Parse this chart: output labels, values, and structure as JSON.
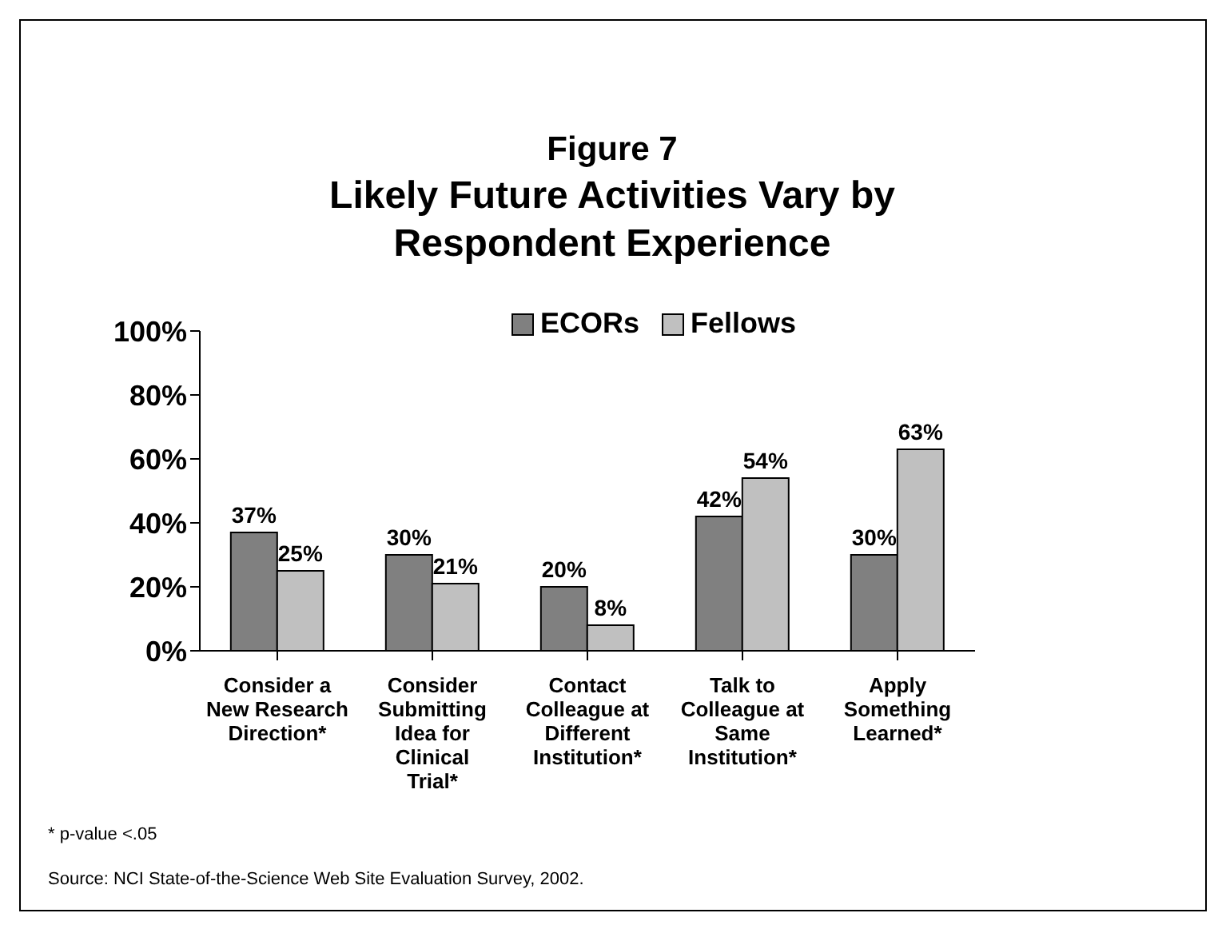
{
  "chart_data": {
    "type": "bar",
    "title": "Figure 7",
    "subtitle": "Likely Future Activities Vary by Respondent Experience",
    "categories": [
      "Consider a New Research Direction*",
      "Consider Submitting Idea for Clinical Trial*",
      "Contact Colleague at Different Institution*",
      "Talk to Colleague at Same Institution*",
      "Apply Something Learned*"
    ],
    "series": [
      {
        "name": "ECORs",
        "color": "#808080",
        "values": [
          37,
          30,
          20,
          42,
          30
        ],
        "value_labels": [
          "37%",
          "30%",
          "20%",
          "42%",
          "30%"
        ]
      },
      {
        "name": "Fellows",
        "color": "#c0c0c0",
        "values": [
          25,
          21,
          8,
          54,
          63
        ],
        "value_labels": [
          "25%",
          "21%",
          "8%",
          "54%",
          "63%"
        ]
      }
    ],
    "ylim": [
      0,
      100
    ],
    "yticks": [
      {
        "value": 0,
        "label": "0%"
      },
      {
        "value": 20,
        "label": "20%"
      },
      {
        "value": 40,
        "label": "40%"
      },
      {
        "value": 60,
        "label": "60%"
      },
      {
        "value": 80,
        "label": "80%"
      },
      {
        "value": 100,
        "label": "100%"
      }
    ],
    "grid": false,
    "legend": "top",
    "annotations": [
      "* p-value <.05",
      "Source: NCI State-of-the-Science Web Site Evaluation Survey, 2002."
    ]
  }
}
